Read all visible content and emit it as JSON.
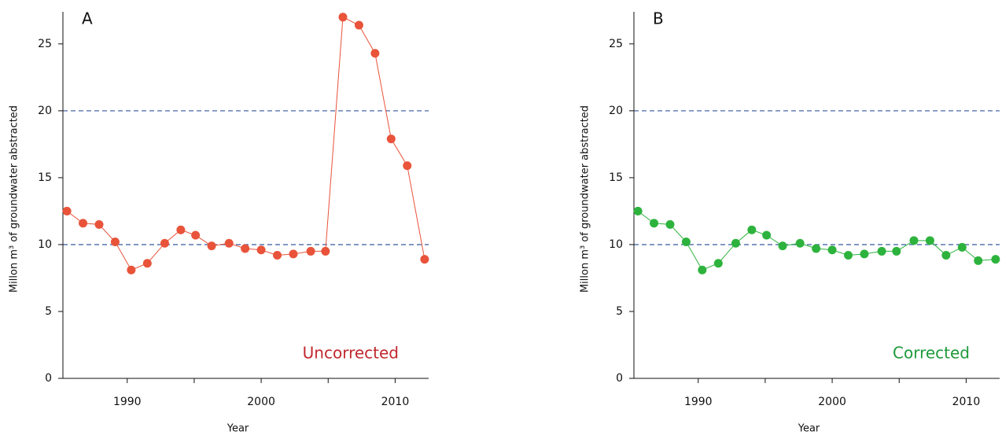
{
  "chart_data": [
    {
      "type": "scatter",
      "panel_label": "A",
      "annotation": "Uncorrected",
      "annotation_color": "#c0282e",
      "xlabel": "Year",
      "ylabel": "Millon m³ of groundwater abstracted",
      "xlim": [
        1985.2,
        2012.5
      ],
      "ylim": [
        0,
        27.4
      ],
      "xticks": [
        1990,
        2000,
        2010
      ],
      "xminorticks": [
        1995,
        2005
      ],
      "yticks": [
        0,
        5,
        10,
        15,
        20,
        25
      ],
      "hlines": [
        10,
        20
      ],
      "hline_color": "#4a6aa8",
      "connect": true,
      "series": [
        {
          "color": "#e8533a",
          "x": [
            1985.5,
            1986.7,
            1987.9,
            1989.1,
            1990.3,
            1991.5,
            1992.8,
            1994.0,
            1995.1,
            1996.3,
            1997.6,
            1998.8,
            2000.0,
            2001.2,
            2002.4,
            2003.7,
            2004.8,
            2006.1,
            2007.3,
            2008.5,
            2009.7,
            2010.9,
            2012.2
          ],
          "values": [
            12.5,
            11.6,
            11.5,
            10.2,
            8.1,
            8.6,
            10.1,
            11.1,
            10.7,
            9.9,
            10.1,
            9.7,
            9.6,
            9.2,
            9.3,
            9.5,
            9.5,
            27.0,
            26.4,
            24.3,
            17.9,
            15.9,
            8.9
          ]
        }
      ]
    },
    {
      "type": "scatter",
      "panel_label": "B",
      "annotation": "Corrected",
      "annotation_color": "#1f9a3a",
      "xlabel": "Year",
      "ylabel": "Millon m³ of groundwater abstracted",
      "xlim": [
        1985.2,
        2012.5
      ],
      "ylim": [
        0,
        27.4
      ],
      "xticks": [
        1990,
        2000,
        2010
      ],
      "xminorticks": [
        1995,
        2005
      ],
      "yticks": [
        0,
        5,
        10,
        15,
        20,
        25
      ],
      "hlines": [
        10,
        20
      ],
      "hline_color": "#4a6aa8",
      "connect": true,
      "series": [
        {
          "color": "#2db33d",
          "x": [
            1985.5,
            1986.7,
            1987.9,
            1989.1,
            1990.3,
            1991.5,
            1992.8,
            1994.0,
            1995.1,
            1996.3,
            1997.6,
            1998.8,
            2000.0,
            2001.2,
            2002.4,
            2003.7,
            2004.8,
            2006.1,
            2007.3,
            2008.5,
            2009.7,
            2010.9,
            2012.2
          ],
          "values": [
            12.5,
            11.6,
            11.5,
            10.2,
            8.1,
            8.6,
            10.1,
            11.1,
            10.7,
            9.9,
            10.1,
            9.7,
            9.6,
            9.2,
            9.3,
            9.5,
            9.5,
            10.3,
            10.3,
            9.2,
            9.8,
            8.8,
            8.9
          ]
        }
      ]
    }
  ]
}
